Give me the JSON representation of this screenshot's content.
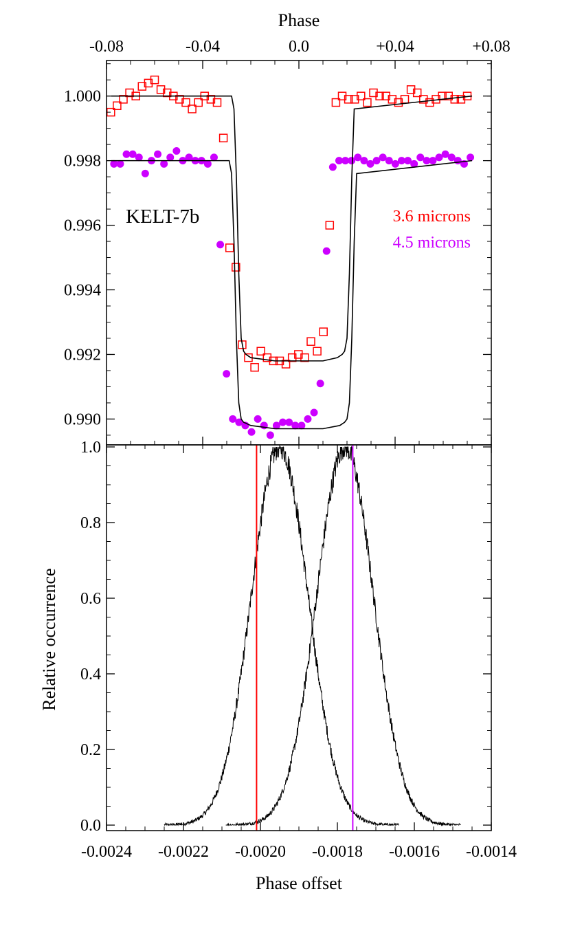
{
  "chart_data": [
    {
      "type": "scatter",
      "xlabel_top": "Phase",
      "xlim": [
        -0.08,
        0.08
      ],
      "ylim": [
        0.9892,
        1.0011
      ],
      "x_ticks": [
        "-0.08",
        "-0.04",
        "0.0",
        "+0.04",
        "+0.08"
      ],
      "x_tick_values": [
        -0.08,
        -0.04,
        0.0,
        0.04,
        0.08
      ],
      "y_ticks": [
        "1.000",
        "0.998",
        "0.996",
        "0.994",
        "0.992",
        "0.990"
      ],
      "y_tick_values": [
        1.0,
        0.998,
        0.996,
        0.994,
        0.992,
        0.99
      ],
      "annotation": "KELT-7b",
      "legend_placement": "right, inside plot",
      "series": [
        {
          "name": "3.6 microns",
          "color": "#ff0000",
          "marker": "open-square",
          "x": [
            -0.0782,
            -0.0756,
            -0.073,
            -0.0704,
            -0.0678,
            -0.0652,
            -0.0626,
            -0.06,
            -0.0574,
            -0.0548,
            -0.0522,
            -0.0496,
            -0.047,
            -0.0444,
            -0.0418,
            -0.0392,
            -0.0366,
            -0.034,
            -0.0314,
            -0.0288,
            -0.0262,
            -0.0236,
            -0.021,
            -0.0184,
            -0.0158,
            -0.0132,
            -0.0106,
            -0.008,
            -0.0054,
            -0.0028,
            -0.0002,
            0.0024,
            0.005,
            0.0076,
            0.0102,
            0.0128,
            0.0154,
            0.018,
            0.0206,
            0.0232,
            0.0258,
            0.0284,
            0.031,
            0.0336,
            0.0362,
            0.0388,
            0.0414,
            0.044,
            0.0466,
            0.0492,
            0.0518,
            0.0544,
            0.057,
            0.0596,
            0.0622,
            0.0648,
            0.0674,
            0.07
          ],
          "y": [
            0.9995,
            0.9997,
            0.9999,
            1.0001,
            1.0,
            1.0003,
            1.0004,
            1.0005,
            1.0002,
            1.0001,
            1.0,
            0.9999,
            0.9998,
            0.9996,
            0.9998,
            1.0,
            0.9999,
            0.9998,
            0.9987,
            0.9953,
            0.9947,
            0.9923,
            0.9919,
            0.9916,
            0.9921,
            0.9919,
            0.9918,
            0.9918,
            0.9917,
            0.9919,
            0.992,
            0.9919,
            0.9924,
            0.9921,
            0.9927,
            0.996,
            0.9998,
            1.0,
            0.9999,
            0.9999,
            1.0,
            0.9998,
            1.0001,
            1.0,
            1.0,
            0.9999,
            0.9998,
            0.9999,
            1.0002,
            1.0001,
            0.9999,
            0.9998,
            0.9999,
            1.0,
            1.0,
            0.9999,
            0.9999,
            1.0
          ]
        },
        {
          "name": "4.5 microns",
          "color": "#cc00ff",
          "marker": "filled-circle",
          "x": [
            -0.0769,
            -0.0743,
            -0.0717,
            -0.0691,
            -0.0665,
            -0.0639,
            -0.0613,
            -0.0587,
            -0.0561,
            -0.0535,
            -0.0509,
            -0.0483,
            -0.0457,
            -0.0431,
            -0.0405,
            -0.0379,
            -0.0353,
            -0.0327,
            -0.0301,
            -0.0275,
            -0.0249,
            -0.0223,
            -0.0197,
            -0.0171,
            -0.0145,
            -0.0119,
            -0.0093,
            -0.0067,
            -0.0041,
            -0.0015,
            0.0011,
            0.0037,
            0.0063,
            0.0089,
            0.0115,
            0.0141,
            0.0167,
            0.0193,
            0.0219,
            0.0245,
            0.0271,
            0.0297,
            0.0323,
            0.0349,
            0.0375,
            0.0401,
            0.0427,
            0.0453,
            0.0479,
            0.0505,
            0.0531,
            0.0557,
            0.0583,
            0.0609,
            0.0635,
            0.0661,
            0.0687,
            0.0713
          ],
          "y": [
            0.9979,
            0.9979,
            0.9982,
            0.9982,
            0.9981,
            0.9976,
            0.998,
            0.9982,
            0.9979,
            0.9981,
            0.9983,
            0.998,
            0.9981,
            0.998,
            0.998,
            0.9979,
            0.9981,
            0.9954,
            0.9914,
            0.99,
            0.9899,
            0.9898,
            0.9896,
            0.99,
            0.9898,
            0.9895,
            0.9898,
            0.9899,
            0.9899,
            0.9898,
            0.9898,
            0.99,
            0.9902,
            0.9911,
            0.9952,
            0.9978,
            0.998,
            0.998,
            0.998,
            0.9981,
            0.998,
            0.9979,
            0.998,
            0.9981,
            0.998,
            0.9979,
            0.998,
            0.998,
            0.9979,
            0.9981,
            0.998,
            0.998,
            0.9981,
            0.9982,
            0.9981,
            0.998,
            0.9979,
            0.9981
          ]
        },
        {
          "name": "",
          "type": "line",
          "color": "#000000",
          "x": [
            -0.078,
            -0.028,
            -0.027,
            -0.026,
            -0.025,
            -0.024,
            -0.023,
            -0.022,
            -0.02,
            -0.01,
            0.0,
            0.01,
            0.016,
            0.018,
            0.019,
            0.02,
            0.021,
            0.022,
            0.023,
            0.072
          ],
          "y": [
            1.0,
            1.0,
            0.9996,
            0.9975,
            0.9945,
            0.9925,
            0.9921,
            0.992,
            0.9919,
            0.9918,
            0.9918,
            0.9918,
            0.9919,
            0.992,
            0.9921,
            0.9925,
            0.9945,
            0.9975,
            0.9996,
            1.0
          ]
        },
        {
          "name": "",
          "type": "line",
          "color": "#000000",
          "x": [
            -0.078,
            -0.029,
            -0.028,
            -0.027,
            -0.026,
            -0.025,
            -0.024,
            -0.023,
            -0.02,
            -0.01,
            0.0,
            0.01,
            0.017,
            0.019,
            0.02,
            0.021,
            0.022,
            0.023,
            0.024,
            0.072
          ],
          "y": [
            0.998,
            0.998,
            0.9976,
            0.9955,
            0.9925,
            0.9905,
            0.99,
            0.9899,
            0.9898,
            0.9897,
            0.9897,
            0.9897,
            0.9898,
            0.9899,
            0.99,
            0.9905,
            0.9925,
            0.9955,
            0.9976,
            0.998
          ]
        }
      ]
    },
    {
      "type": "line",
      "xlabel": "Phase offset",
      "ylabel": "Relative occurrence",
      "xlim": [
        -0.0024,
        -0.0014
      ],
      "ylim": [
        0.0,
        1.0
      ],
      "x_ticks": [
        "-0.0024",
        "-0.0022",
        "-0.0020",
        "-0.0018",
        "-0.0016",
        "-0.0014"
      ],
      "x_tick_values": [
        -0.0024,
        -0.0022,
        -0.002,
        -0.0018,
        -0.0016,
        -0.0014
      ],
      "y_ticks": [
        "0.0",
        "0.2",
        "0.4",
        "0.6",
        "0.8",
        "1.0"
      ],
      "y_tick_values": [
        0.0,
        0.2,
        0.4,
        0.6,
        0.8,
        1.0
      ],
      "series": [
        {
          "name": "",
          "color": "#000000",
          "center": -0.00195,
          "sigma": 7.4e-05,
          "x_range": [
            -0.00225,
            -0.00164
          ]
        },
        {
          "name": "",
          "color": "#000000",
          "center": -0.00178,
          "sigma": 7.4e-05,
          "x_range": [
            -0.00209,
            -0.00148
          ]
        }
      ],
      "vlines": [
        {
          "x": -0.00201,
          "color": "#ff0000"
        },
        {
          "x": -0.00176,
          "color": "#cc00ff"
        }
      ]
    }
  ]
}
